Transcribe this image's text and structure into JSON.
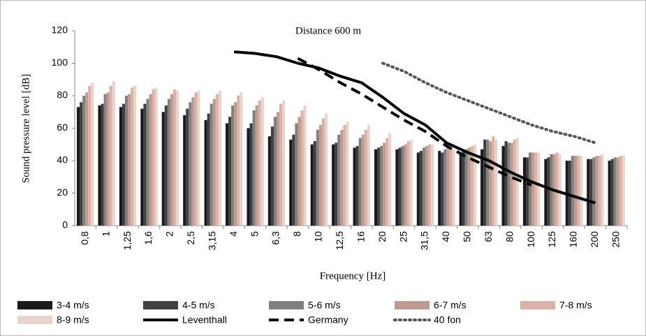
{
  "chart_data": {
    "type": "bar",
    "title": "Distance 600 m",
    "x_label": "Frequency [Hz]",
    "y_label": "Sound pressure level [dB]",
    "categories": [
      "0,8",
      "1",
      "1,25",
      "1,6",
      "2",
      "2,5",
      "3,15",
      "4",
      "5",
      "6,3",
      "8",
      "10",
      "12,5",
      "16",
      "20",
      "25",
      "31,5",
      "40",
      "50",
      "63",
      "80",
      "100",
      "125",
      "160",
      "200",
      "250"
    ],
    "ylim": [
      0,
      120
    ],
    "yticks": [
      0,
      20,
      40,
      60,
      80,
      100,
      120
    ],
    "series": [
      {
        "name": "3-4 m/s",
        "type": "bar",
        "color": "#1a1a1a",
        "values": [
          73,
          74,
          73,
          72,
          70,
          68,
          65,
          63,
          60,
          55,
          53,
          50,
          50,
          48,
          47,
          47,
          45,
          46,
          45,
          47,
          49,
          42,
          41,
          40,
          41,
          40
        ]
      },
      {
        "name": "4-5 m/s",
        "type": "bar",
        "color": "#404040",
        "values": [
          76,
          75,
          75,
          75,
          74,
          72,
          69,
          67,
          63,
          61,
          56,
          52,
          51,
          49,
          48,
          48,
          46,
          45,
          46,
          53,
          52,
          42,
          42,
          40,
          41,
          41
        ]
      },
      {
        "name": "5-6 m/s",
        "type": "bar",
        "color": "#808080",
        "values": [
          80,
          81,
          80,
          78,
          78,
          76,
          75,
          74,
          71,
          67,
          63,
          59,
          56,
          54,
          49,
          49,
          48,
          47,
          47,
          53,
          51,
          45,
          44,
          43,
          42,
          42
        ]
      },
      {
        "name": "6-7 m/s",
        "type": "bar",
        "color": "#c09a8e",
        "values": [
          82,
          82,
          81,
          81,
          81,
          79,
          78,
          76,
          74,
          70,
          67,
          62,
          59,
          56,
          51,
          50,
          49,
          48,
          48,
          52,
          51,
          45,
          44,
          43,
          43,
          42
        ]
      },
      {
        "name": "7-8 m/s",
        "type": "bar",
        "color": "#d9b3a8",
        "values": [
          86,
          86,
          85,
          84,
          84,
          82,
          81,
          80,
          77,
          75,
          71,
          66,
          62,
          59,
          54,
          52,
          50,
          48,
          49,
          55,
          53,
          45,
          45,
          43,
          43,
          43
        ]
      },
      {
        "name": "8-9 m/s",
        "type": "bar",
        "color": "#e8d4cc",
        "values": [
          88,
          89,
          86,
          85,
          83,
          83,
          83,
          82,
          79,
          77,
          74,
          69,
          64,
          62,
          57,
          53,
          50,
          47,
          50,
          53,
          54,
          45,
          44,
          43,
          44,
          43
        ]
      },
      {
        "name": "Leventhall",
        "type": "line",
        "dash": "solid",
        "color": "#000000",
        "values": [
          null,
          null,
          null,
          null,
          null,
          null,
          null,
          107,
          106,
          104,
          100,
          97,
          92,
          88,
          79,
          69,
          62,
          51,
          45,
          40,
          33,
          27,
          22,
          18,
          14,
          null
        ]
      },
      {
        "name": "Germany",
        "type": "line",
        "dash": "dashed",
        "color": "#000000",
        "values": [
          null,
          null,
          null,
          null,
          null,
          null,
          null,
          null,
          null,
          null,
          103,
          96,
          88,
          81,
          73,
          65,
          58,
          49,
          42,
          36,
          30,
          25,
          null,
          null,
          null,
          null
        ]
      },
      {
        "name": "40 fon",
        "type": "line",
        "dash": "dotted",
        "color": "#555555",
        "values": [
          null,
          null,
          null,
          null,
          null,
          null,
          null,
          null,
          null,
          null,
          null,
          null,
          null,
          null,
          100,
          95,
          88,
          82,
          77,
          72,
          67,
          62,
          58,
          55,
          51,
          null
        ]
      }
    ]
  }
}
